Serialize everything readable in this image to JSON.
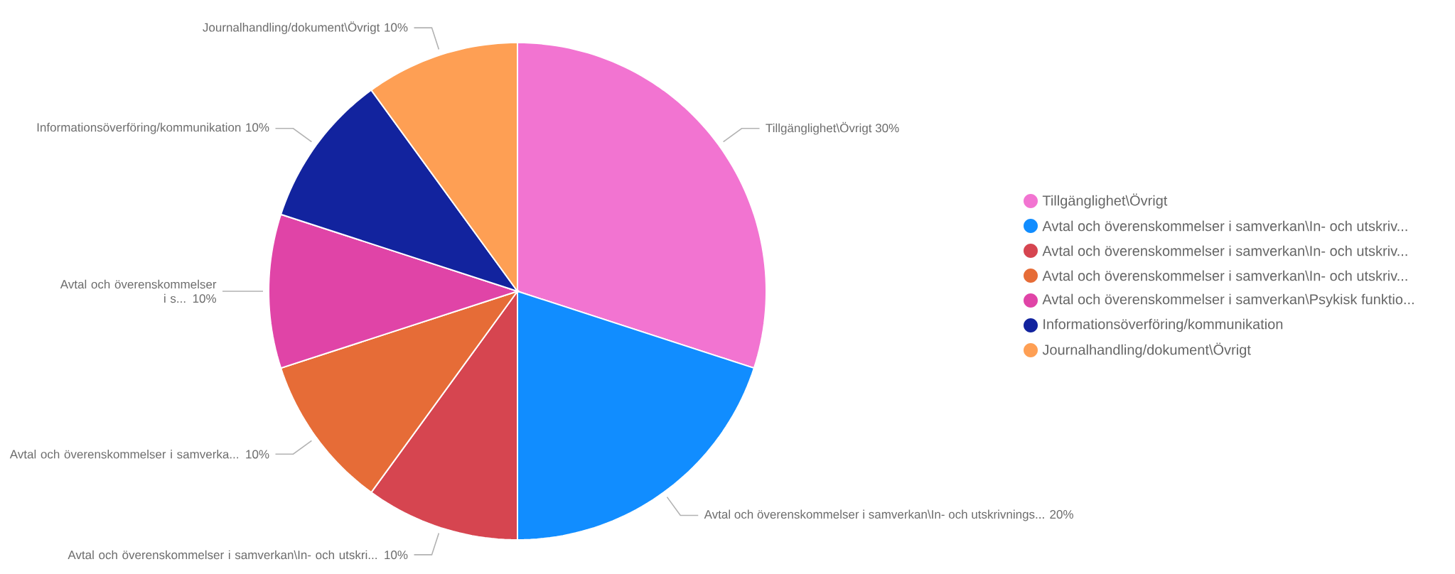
{
  "chart_data": {
    "type": "pie",
    "categories": [
      "Tillgänglighet\\Övrigt",
      "Avtal och överenskommelser i samverkan\\In- och utskriv...",
      "Avtal och överenskommelser i samverkan\\In- och utskriv...",
      "Avtal och överenskommelser i samverkan\\In- och utskriv...",
      "Avtal och överenskommelser i samverkan\\Psykisk funktio...",
      "Informationsöverföring/kommunikation",
      "Journalhandling/dokument\\Övrigt"
    ],
    "values": [
      30,
      20,
      10,
      10,
      10,
      10,
      10
    ],
    "colors": [
      "#f274d1",
      "#118dff",
      "#d64550",
      "#e66c37",
      "#e044a7",
      "#12239e",
      "#fe9f54"
    ],
    "value_labels": [
      "Tillgänglighet\\Övrigt 30%",
      "Avtal och överenskommelser i samverkan\\In- och utskrivnings... 20%",
      "Avtal och överenskommelser i samverkan\\In- och utskri... 10%",
      "Avtal och överenskommelser i samverka... 10%",
      "Avtal och överenskommelser i s... 10%",
      "Informationsöverföring/kommunikation 10%",
      "Journalhandling/dokument\\Övrigt 10%"
    ],
    "legend": "right"
  }
}
